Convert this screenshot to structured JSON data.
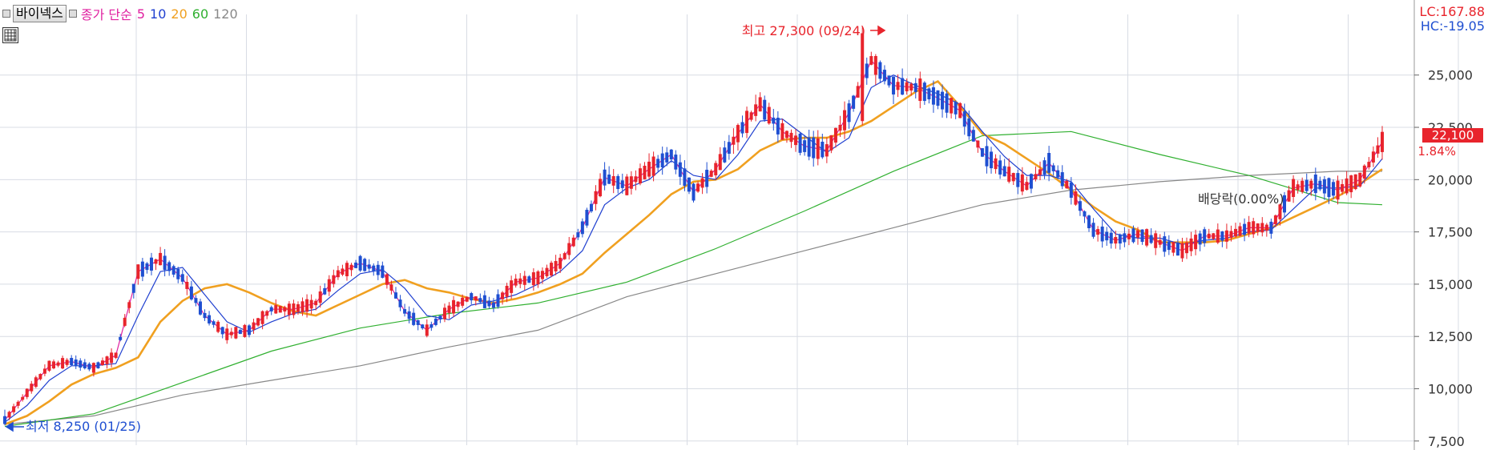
{
  "legend": {
    "name": "바이넥스",
    "label": "종가 단순",
    "ma5": "5",
    "ma10": "10",
    "ma20": "20",
    "ma60": "60",
    "ma120": "120"
  },
  "colors": {
    "up": "#e8242c",
    "down": "#1f4fd1",
    "ma5": "#e020a0",
    "ma10": "#2040d0",
    "ma20": "#f0a020",
    "ma60": "#30b030",
    "ma120": "#888888",
    "grid": "#d8dce4",
    "axis_text": "#333333"
  },
  "top_right": {
    "lc": "LC:167.88",
    "hc": "HC:-19.05"
  },
  "current": {
    "price": "22,100",
    "change": "1.84%"
  },
  "annotations": {
    "high": "최고 27,300 (09/24)",
    "low": "최저 8,250 (01/25)",
    "dividend": "배당락(0.00%)"
  },
  "chart_data": {
    "type": "candlestick",
    "y_axis_labels": [
      "25,000",
      "22,500",
      "20,000",
      "17,500",
      "15,000",
      "12,500",
      "10,000",
      "7,500"
    ],
    "y_axis_values": [
      25000,
      22500,
      20000,
      17500,
      15000,
      12500,
      10000,
      7500
    ],
    "ylim": [
      7300,
      27900
    ],
    "grid": true,
    "vertical_gridlines": 13,
    "high": {
      "value": 27300,
      "date": "09/24"
    },
    "low": {
      "value": 8250,
      "date": "01/25"
    },
    "last_close": 22100,
    "change_percent": 1.84,
    "moving_averages": [
      {
        "name": "5",
        "points": [
          [
            0,
            8500
          ],
          [
            5,
            9800
          ],
          [
            10,
            11100
          ],
          [
            15,
            11300
          ],
          [
            20,
            11000
          ],
          [
            25,
            11600
          ],
          [
            30,
            15600
          ],
          [
            35,
            16200
          ],
          [
            40,
            15300
          ],
          [
            45,
            13500
          ],
          [
            50,
            12600
          ],
          [
            55,
            12800
          ],
          [
            60,
            13800
          ],
          [
            65,
            13800
          ],
          [
            70,
            14100
          ],
          [
            75,
            15500
          ],
          [
            80,
            16000
          ],
          [
            85,
            15600
          ],
          [
            90,
            13700
          ],
          [
            95,
            12800
          ],
          [
            100,
            13800
          ],
          [
            105,
            14400
          ],
          [
            110,
            14000
          ],
          [
            115,
            15100
          ],
          [
            120,
            15300
          ],
          [
            125,
            16000
          ],
          [
            130,
            17700
          ],
          [
            135,
            20100
          ],
          [
            140,
            19700
          ],
          [
            145,
            20500
          ],
          [
            150,
            21200
          ],
          [
            155,
            19400
          ],
          [
            160,
            20500
          ],
          [
            165,
            22200
          ],
          [
            170,
            23600
          ],
          [
            175,
            22300
          ],
          [
            180,
            21600
          ],
          [
            185,
            21400
          ],
          [
            190,
            23200
          ],
          [
            195,
            25700
          ],
          [
            200,
            24500
          ],
          [
            205,
            24400
          ],
          [
            210,
            23900
          ],
          [
            215,
            23300
          ],
          [
            220,
            21300
          ],
          [
            225,
            20400
          ],
          [
            230,
            19700
          ],
          [
            235,
            20800
          ],
          [
            240,
            19500
          ],
          [
            245,
            17600
          ],
          [
            250,
            17100
          ],
          [
            255,
            17400
          ],
          [
            260,
            17000
          ],
          [
            265,
            16600
          ],
          [
            270,
            17300
          ],
          [
            275,
            17300
          ],
          [
            280,
            17700
          ],
          [
            285,
            17700
          ],
          [
            290,
            19600
          ],
          [
            295,
            19800
          ],
          [
            300,
            19500
          ],
          [
            305,
            20000
          ],
          [
            310,
            21800
          ]
        ]
      },
      {
        "name": "10",
        "points": [
          [
            0,
            8400
          ],
          [
            5,
            9200
          ],
          [
            10,
            10400
          ],
          [
            15,
            11100
          ],
          [
            20,
            11100
          ],
          [
            25,
            11200
          ],
          [
            30,
            13500
          ],
          [
            35,
            15600
          ],
          [
            40,
            15800
          ],
          [
            45,
            14500
          ],
          [
            50,
            13200
          ],
          [
            55,
            12700
          ],
          [
            60,
            13200
          ],
          [
            65,
            13600
          ],
          [
            70,
            13800
          ],
          [
            75,
            14700
          ],
          [
            80,
            15500
          ],
          [
            85,
            15700
          ],
          [
            90,
            14800
          ],
          [
            95,
            13500
          ],
          [
            100,
            13300
          ],
          [
            105,
            14000
          ],
          [
            110,
            14200
          ],
          [
            115,
            14500
          ],
          [
            120,
            15000
          ],
          [
            125,
            15600
          ],
          [
            130,
            16600
          ],
          [
            135,
            18800
          ],
          [
            140,
            19600
          ],
          [
            145,
            20000
          ],
          [
            150,
            20900
          ],
          [
            155,
            20200
          ],
          [
            160,
            20000
          ],
          [
            165,
            21200
          ],
          [
            170,
            22800
          ],
          [
            175,
            22900
          ],
          [
            180,
            22100
          ],
          [
            185,
            21300
          ],
          [
            190,
            22000
          ],
          [
            195,
            24400
          ],
          [
            200,
            25000
          ],
          [
            205,
            24500
          ],
          [
            210,
            24100
          ],
          [
            215,
            23600
          ],
          [
            220,
            22300
          ],
          [
            225,
            21100
          ],
          [
            230,
            20200
          ],
          [
            235,
            20200
          ],
          [
            240,
            19900
          ],
          [
            245,
            18600
          ],
          [
            250,
            17400
          ],
          [
            255,
            17200
          ],
          [
            260,
            17200
          ],
          [
            265,
            16900
          ],
          [
            270,
            17100
          ],
          [
            275,
            17200
          ],
          [
            280,
            17500
          ],
          [
            285,
            17600
          ],
          [
            290,
            18600
          ],
          [
            295,
            19600
          ],
          [
            300,
            19600
          ],
          [
            305,
            19700
          ],
          [
            310,
            21000
          ]
        ]
      },
      {
        "name": "20",
        "points": [
          [
            0,
            8300
          ],
          [
            5,
            8700
          ],
          [
            10,
            9400
          ],
          [
            15,
            10200
          ],
          [
            20,
            10700
          ],
          [
            25,
            11000
          ],
          [
            30,
            11500
          ],
          [
            35,
            13200
          ],
          [
            40,
            14200
          ],
          [
            45,
            14800
          ],
          [
            50,
            15000
          ],
          [
            55,
            14600
          ],
          [
            60,
            14100
          ],
          [
            65,
            13700
          ],
          [
            70,
            13500
          ],
          [
            75,
            14000
          ],
          [
            80,
            14500
          ],
          [
            85,
            15000
          ],
          [
            90,
            15200
          ],
          [
            95,
            14800
          ],
          [
            100,
            14600
          ],
          [
            105,
            14300
          ],
          [
            110,
            14100
          ],
          [
            115,
            14300
          ],
          [
            120,
            14600
          ],
          [
            125,
            15000
          ],
          [
            130,
            15500
          ],
          [
            135,
            16500
          ],
          [
            140,
            17400
          ],
          [
            145,
            18300
          ],
          [
            150,
            19300
          ],
          [
            155,
            19900
          ],
          [
            160,
            20000
          ],
          [
            165,
            20500
          ],
          [
            170,
            21400
          ],
          [
            175,
            21900
          ],
          [
            180,
            22000
          ],
          [
            185,
            22000
          ],
          [
            190,
            22300
          ],
          [
            195,
            22800
          ],
          [
            200,
            23500
          ],
          [
            205,
            24200
          ],
          [
            210,
            24700
          ],
          [
            215,
            23500
          ],
          [
            220,
            22200
          ],
          [
            225,
            21700
          ],
          [
            230,
            21000
          ],
          [
            235,
            20300
          ],
          [
            240,
            19500
          ],
          [
            245,
            18700
          ],
          [
            250,
            18000
          ],
          [
            255,
            17600
          ],
          [
            260,
            17000
          ],
          [
            265,
            17000
          ],
          [
            270,
            17000
          ],
          [
            275,
            17100
          ],
          [
            280,
            17400
          ],
          [
            285,
            17700
          ],
          [
            290,
            18200
          ],
          [
            295,
            18700
          ],
          [
            300,
            19200
          ],
          [
            305,
            19800
          ],
          [
            310,
            20500
          ]
        ]
      },
      {
        "name": "60",
        "points": [
          [
            0,
            8200
          ],
          [
            20,
            8800
          ],
          [
            40,
            10300
          ],
          [
            60,
            11800
          ],
          [
            80,
            12900
          ],
          [
            100,
            13600
          ],
          [
            120,
            14100
          ],
          [
            140,
            15100
          ],
          [
            160,
            16700
          ],
          [
            180,
            18500
          ],
          [
            200,
            20400
          ],
          [
            220,
            22100
          ],
          [
            240,
            22300
          ],
          [
            260,
            21200
          ],
          [
            280,
            20200
          ],
          [
            300,
            18900
          ],
          [
            310,
            18800
          ]
        ]
      },
      {
        "name": "120",
        "points": [
          [
            0,
            8300
          ],
          [
            20,
            8700
          ],
          [
            40,
            9700
          ],
          [
            60,
            10400
          ],
          [
            80,
            11100
          ],
          [
            100,
            12000
          ],
          [
            120,
            12800
          ],
          [
            140,
            14400
          ],
          [
            160,
            15500
          ],
          [
            180,
            16600
          ],
          [
            200,
            17700
          ],
          [
            220,
            18800
          ],
          [
            240,
            19500
          ],
          [
            260,
            19900
          ],
          [
            280,
            20200
          ],
          [
            300,
            20400
          ],
          [
            310,
            20400
          ]
        ]
      }
    ]
  }
}
